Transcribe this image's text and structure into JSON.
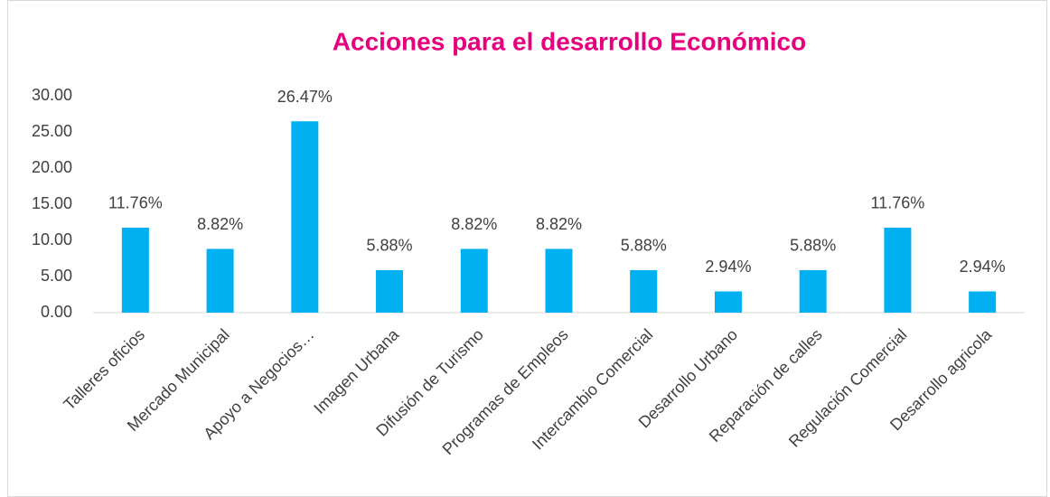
{
  "chart_data": {
    "type": "bar",
    "title": "Acciones para el desarrollo Económico",
    "categories": [
      "Talleres oficios",
      "Mercado Municipal",
      "Apoyo a Negocios…",
      "Imagen Urbana",
      "Difusión de Turismo",
      "Programas de Empleos",
      "Intercambio Comercial",
      "Desarrollo Urbano",
      "Reparación de calles",
      "Regulación Comercial",
      "Desarrollo agricola"
    ],
    "values": [
      11.76,
      8.82,
      26.47,
      5.88,
      8.82,
      8.82,
      5.88,
      2.94,
      5.88,
      11.76,
      2.94
    ],
    "value_labels": [
      "11.76%",
      "8.82%",
      "26.47%",
      "5.88%",
      "8.82%",
      "8.82%",
      "5.88%",
      "2.94%",
      "5.88%",
      "11.76%",
      "2.94%"
    ],
    "color": "#00b0f0",
    "ylim": [
      0,
      30
    ],
    "yticks": [
      {
        "value": 0,
        "label": "0.00"
      },
      {
        "value": 5,
        "label": "5.00"
      },
      {
        "value": 10,
        "label": "10.00"
      },
      {
        "value": 15,
        "label": "15.00"
      },
      {
        "value": 20,
        "label": "20.00"
      },
      {
        "value": 25,
        "label": "25.00"
      },
      {
        "value": 30,
        "label": "30.00"
      }
    ],
    "grid": false
  }
}
